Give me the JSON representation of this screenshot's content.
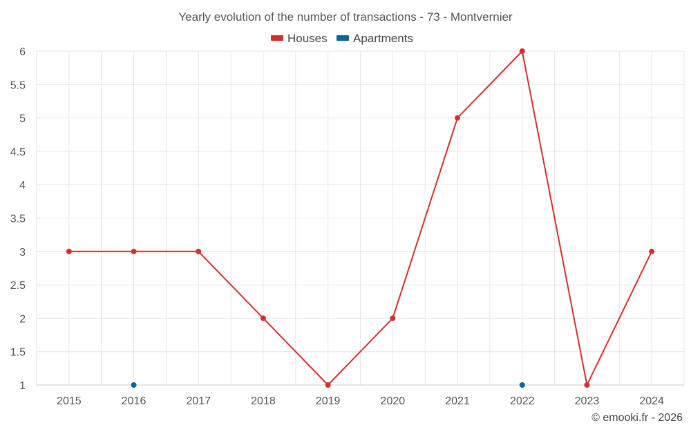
{
  "chart_data": {
    "type": "line",
    "title": "Yearly evolution of the number of transactions - 73 - Montvernier",
    "categories": [
      "2015",
      "2016",
      "2017",
      "2018",
      "2019",
      "2020",
      "2021",
      "2022",
      "2023",
      "2024"
    ],
    "y_ticks": [
      "1",
      "1.5",
      "2",
      "2.5",
      "3",
      "3.5",
      "4",
      "4.5",
      "5",
      "5.5",
      "6"
    ],
    "ylim": [
      1,
      6
    ],
    "grid": true,
    "legend_position": "top-center",
    "series": [
      {
        "name": "Houses",
        "color": "#d32f2f",
        "values": [
          3,
          3,
          3,
          2,
          1,
          2,
          5,
          6,
          1,
          3
        ]
      },
      {
        "name": "Apartments",
        "color": "#0d6699",
        "values": [
          null,
          1,
          null,
          null,
          null,
          null,
          null,
          1,
          null,
          null
        ]
      }
    ]
  },
  "credit": "© emooki.fr - 2026"
}
